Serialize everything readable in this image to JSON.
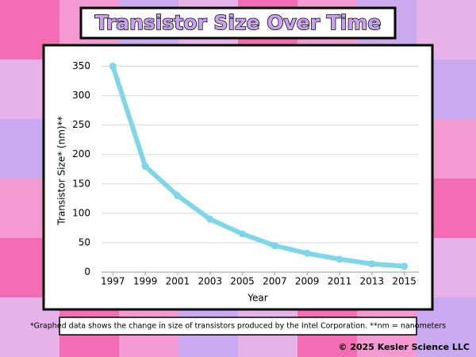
{
  "chart_data": {
    "type": "line",
    "title": "Transistor Size Over Time",
    "x_label": "Year",
    "y_label": "Transistor Size* (nm)**",
    "footnote": "*Graphed data shows the change in size of transistors produced by the Intel Corporation.  **nm = nanometers",
    "copyright": "© 2025 Kesler Science LLC",
    "x": [
      1997,
      1999,
      2001,
      2003,
      2005,
      2007,
      2009,
      2011,
      2013,
      2015
    ],
    "series": [
      {
        "name": "Transistor Size",
        "color": "#7fd6e6",
        "values": [
          350,
          180,
          130,
          90,
          65,
          45,
          32,
          22,
          14,
          10
        ]
      }
    ],
    "xlim": [
      1996.3,
      2015.9
    ],
    "xticks": [
      1997,
      1999,
      2001,
      2003,
      2005,
      2007,
      2009,
      2011,
      2013,
      2015
    ],
    "ylim": [
      0,
      375
    ],
    "yticks": [
      0,
      50,
      100,
      150,
      200,
      250,
      300,
      350
    ],
    "grid": true
  }
}
